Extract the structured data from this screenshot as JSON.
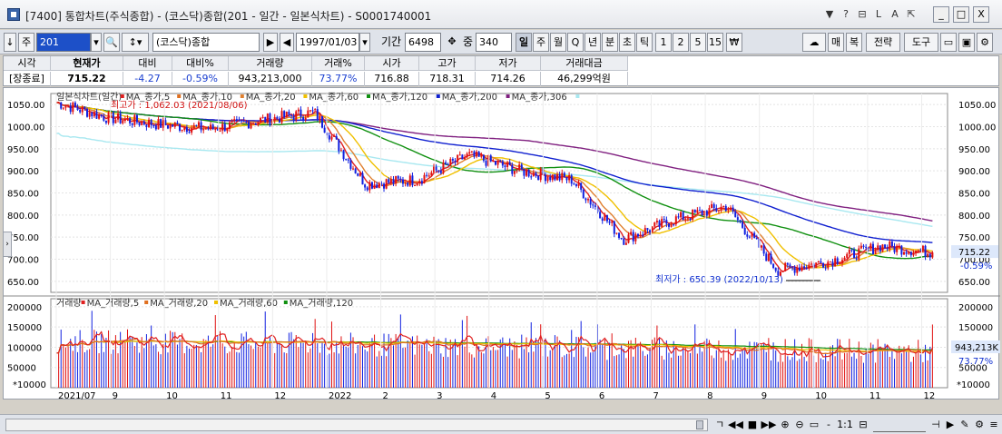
{
  "window": {
    "title": "[7400] 통합차트(주식종합) - (코스닥)종합(201 - 일간 - 일본식차트) - S0001740001",
    "title_buttons": [
      "▼",
      "?",
      "⊟",
      "L",
      "A",
      "⇱"
    ],
    "sys_buttons": [
      "_",
      "□",
      "X"
    ]
  },
  "toolbar": {
    "code": "201",
    "market_name": "(코스닥)종합",
    "start_date": "1997/01/03",
    "period_label": "기간",
    "period_value": "6498",
    "overlap_label": "중",
    "overlap_value": "340",
    "period_buttons": [
      "일",
      "주",
      "월",
      "Q",
      "년",
      "분",
      "초",
      "틱",
      "1",
      "2",
      "5",
      "15",
      "₩"
    ],
    "active_period": "일",
    "right_buttons": [
      "매",
      "복",
      "전략",
      "도구"
    ],
    "prefix": "주"
  },
  "quote": {
    "headers": [
      "시각",
      "현재가",
      "대비",
      "대비%",
      "거래량",
      "거래%",
      "시가",
      "고가",
      "저가",
      "거래대금"
    ],
    "values": [
      "[장종료]",
      "715.22",
      "-4.27",
      "-0.59%",
      "943,213,000",
      "73.77%",
      "716.88",
      "718.31",
      "714.26",
      "46,299억원"
    ]
  },
  "price_pane": {
    "legend": [
      "일본식차트(일간)",
      "MA_종가,5",
      "MA_종가,10",
      "MA_종가,20",
      "MA_종가,60",
      "MA_종가,120",
      "MA_종가,200",
      "MA_종가,306"
    ],
    "legend_colors": [
      "#333333",
      "#e02020",
      "#e07020",
      "#e08030",
      "#f0c000",
      "#109010",
      "#1020d0",
      "#802080"
    ],
    "ma306_color": "#a8e8f0",
    "high_annotation": "최고가 : 1,062.03 (2021/08/06)",
    "low_annotation": "최저가 : 650.39 (2022/10/13)",
    "y_ticks": [
      "1050.00",
      "1000.00",
      "950.00",
      "900.00",
      "850.00",
      "800.00",
      "750.00",
      "700.00",
      "650.00"
    ],
    "last_price": "715.22",
    "last_change": "-0.59%"
  },
  "volume_pane": {
    "legend": [
      "거래량",
      "MA_거래량,5",
      "MA_거래량,20",
      "MA_거래량,60",
      "MA_거래량,120"
    ],
    "legend_colors": [
      "#333333",
      "#e02020",
      "#e07020",
      "#f0c000",
      "#109010"
    ],
    "y_ticks": [
      "200000",
      "150000",
      "100000",
      "50000"
    ],
    "unit": "*10000",
    "last_volume": "943,213K",
    "last_pct": "73.77%"
  },
  "x_axis": {
    "labels": [
      "2021/07",
      "9",
      "10",
      "11",
      "12",
      "2022",
      "2",
      "3",
      "4",
      "5",
      "6",
      "7",
      "8",
      "9",
      "10",
      "11",
      "12"
    ]
  },
  "chart_data": {
    "type": "candlestick",
    "title": "일본식차트(일간)",
    "y_range": [
      625,
      1075
    ],
    "monthly_close": [
      {
        "month": "2021/07",
        "close": 1055
      },
      {
        "month": "2021/08",
        "close": 1020
      },
      {
        "month": "2021/09",
        "close": 1005
      },
      {
        "month": "2021/10",
        "close": 995
      },
      {
        "month": "2021/11",
        "close": 1015
      },
      {
        "month": "2021/12",
        "close": 1033
      },
      {
        "month": "2022/01",
        "close": 870
      },
      {
        "month": "2022/02",
        "close": 880
      },
      {
        "month": "2022/03",
        "close": 935
      },
      {
        "month": "2022/04",
        "close": 900
      },
      {
        "month": "2022/05",
        "close": 880
      },
      {
        "month": "2022/06",
        "close": 745
      },
      {
        "month": "2022/07",
        "close": 790
      },
      {
        "month": "2022/08",
        "close": 820
      },
      {
        "month": "2022/09",
        "close": 675
      },
      {
        "month": "2022/10",
        "close": 695
      },
      {
        "month": "2022/11",
        "close": 730
      },
      {
        "month": "2022/12",
        "close": 715
      }
    ],
    "highest": {
      "value": 1062.03,
      "date": "2021/08/06"
    },
    "lowest": {
      "value": 650.39,
      "date": "2022/10/13"
    },
    "last": 715.22
  }
}
